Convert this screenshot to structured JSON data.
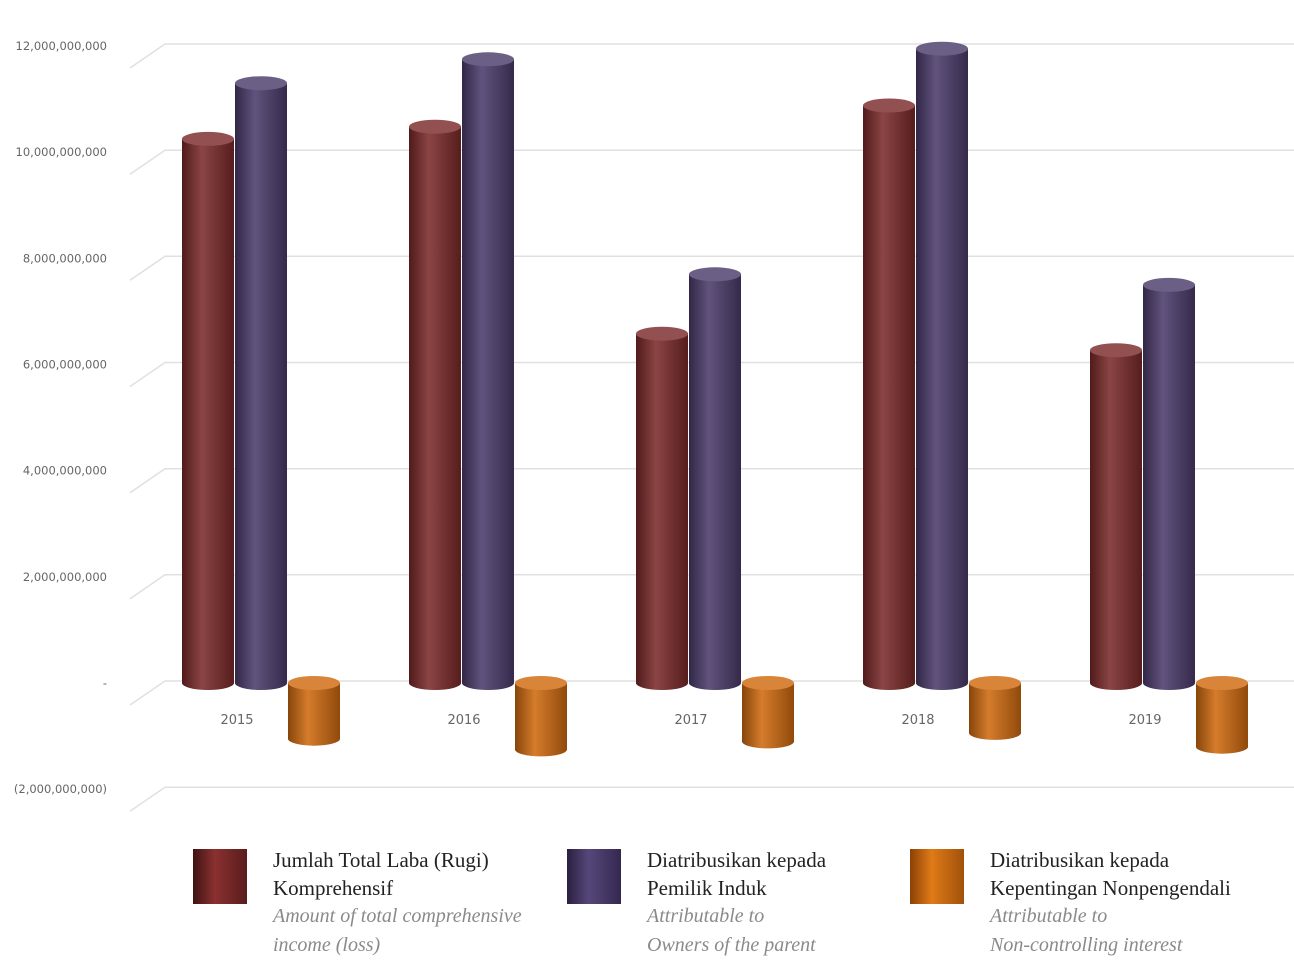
{
  "chart_data": {
    "type": "bar",
    "style": "3d-cylinder",
    "categories": [
      "2015",
      "2016",
      "2017",
      "2018",
      "2019"
    ],
    "series": [
      {
        "key": "total",
        "color": "#7b2a2a",
        "values": [
          10250000000,
          10480000000,
          6580000000,
          10880000000,
          6270000000
        ]
      },
      {
        "key": "parent",
        "color": "#4b3c6b",
        "values": [
          11300000000,
          11750000000,
          7700000000,
          11950000000,
          7500000000
        ]
      },
      {
        "key": "nci",
        "color": "#cf6a0f",
        "values": [
          -1050000000,
          -1250000000,
          -1100000000,
          -940000000,
          -1200000000
        ]
      }
    ],
    "yticks": [
      {
        "value": 12000000000,
        "label": "12,000,000,000"
      },
      {
        "value": 10000000000,
        "label": "10,000,000,000"
      },
      {
        "value": 8000000000,
        "label": "8,000,000,000"
      },
      {
        "value": 6000000000,
        "label": "6,000,000,000"
      },
      {
        "value": 4000000000,
        "label": "4,000,000,000"
      },
      {
        "value": 2000000000,
        "label": "2,000,000,000"
      },
      {
        "value": 0,
        "label": "-"
      },
      {
        "value": -2000000000,
        "label": "(2,000,000,000)"
      }
    ],
    "ylim": [
      -2000000000,
      12000000000
    ],
    "grid": true,
    "legend_position": "bottom"
  },
  "legend": [
    {
      "key": "total",
      "color": "#7b2a2a",
      "line1": "Jumlah Total Laba (Rugi)",
      "line2": "Komprehensif",
      "line3": "Amount of total comprehensive",
      "line4": "income (loss)"
    },
    {
      "key": "parent",
      "color": "#4b3c6b",
      "line1": "Diatribusikan kepada",
      "line2": "Pemilik Induk",
      "line3": "Attributable to",
      "line4": "Owners of the parent"
    },
    {
      "key": "nci",
      "color": "#cf6a0f",
      "line1": "Diatribusikan kepada",
      "line2": "Kepentingan Nonpengendali",
      "line3": "Attributable to",
      "line4": "Non-controlling interest"
    }
  ]
}
